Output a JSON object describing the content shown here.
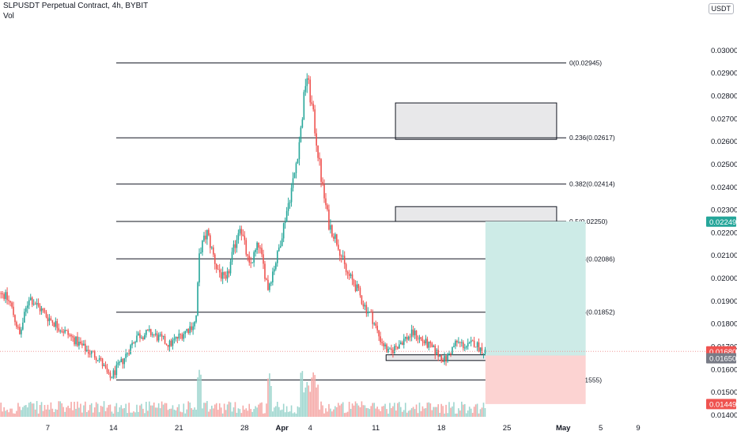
{
  "header": {
    "title": "SLPUSDT Perpetual Contract, 4h, BYBIT",
    "indicator": "Vol"
  },
  "currency_button": "USDT",
  "colors": {
    "up": "#26a69a",
    "down": "#ef5350",
    "vol_up": "#9fd6cf",
    "vol_down": "#f5a9a7",
    "profit_zone": "#cdebe7",
    "loss_zone": "#fcd3d2",
    "zone_box": "#e8e8ea",
    "grid_line": "#131722",
    "price_line": "#ef9a9a"
  },
  "chart_data": {
    "type": "candlestick",
    "symbol": "SLPUSDT",
    "timeframe": "4h",
    "exchange": "BYBIT",
    "y_range": [
      0.014,
      0.031
    ],
    "y_ticks": [
      "0.03000",
      "0.02900",
      "0.02800",
      "0.02700",
      "0.02600",
      "0.02500",
      "0.02400",
      "0.02300",
      "0.02200",
      "0.02100",
      "0.02000",
      "0.01900",
      "0.01800",
      "0.01700",
      "0.01600",
      "0.01500",
      "0.01400"
    ],
    "x_ticks": [
      {
        "label": "7",
        "day": 7
      },
      {
        "label": "14",
        "day": 14
      },
      {
        "label": "21",
        "day": 21
      },
      {
        "label": "28",
        "day": 28
      },
      {
        "label": "Apr",
        "day": 32,
        "bold": true
      },
      {
        "label": "4",
        "day": 35
      },
      {
        "label": "11",
        "day": 42
      },
      {
        "label": "18",
        "day": 49
      },
      {
        "label": "25",
        "day": 56
      },
      {
        "label": "May",
        "day": 62,
        "bold": true
      },
      {
        "label": "5",
        "day": 66
      },
      {
        "label": "9",
        "day": 70
      }
    ],
    "fib_levels": [
      {
        "label": "0(0.02945)",
        "value": 0.02945
      },
      {
        "label": "0.236(0.02617)",
        "value": 0.02617
      },
      {
        "label": "0.382(0.02414)",
        "value": 0.02414
      },
      {
        "label": "0.5(0.02250)",
        "value": 0.0225
      },
      {
        "label": "0.618(0.02086)",
        "value": 0.02086
      },
      {
        "label": "0.786(0.01852)",
        "value": 0.01852
      },
      {
        "label": "1(0.01555)",
        "value": 0.01555
      }
    ],
    "zones": [
      {
        "day_start": 44.1,
        "day_end": 61.3,
        "low": 0.0261,
        "high": 0.0277
      },
      {
        "day_start": 44.1,
        "day_end": 61.3,
        "low": 0.0225,
        "high": 0.02315
      },
      {
        "day_start": 43.1,
        "day_end": 61.3,
        "low": 0.0164,
        "high": 0.01665
      }
    ],
    "position": {
      "day_start": 53.7,
      "day_end": 64.4,
      "entry": 0.01662,
      "target": 0.0225,
      "stop": 0.01449
    },
    "price_tags": [
      {
        "value": 0.02249,
        "label": "0.02249",
        "color": "#26a69a"
      },
      {
        "value": 0.0168,
        "label": "0.01680",
        "color": "#ef5350"
      },
      {
        "value": 0.0165,
        "label": "0.01650",
        "color": "#787b86"
      },
      {
        "value": 0.01449,
        "label": "0.01449",
        "color": "#ef5350"
      }
    ],
    "current_price": 0.0168,
    "anchor_points": [
      {
        "day": 1,
        "price": 0.02
      },
      {
        "day": 3,
        "price": 0.0189
      },
      {
        "day": 4,
        "price": 0.0175
      },
      {
        "day": 5,
        "price": 0.0192
      },
      {
        "day": 7,
        "price": 0.0183
      },
      {
        "day": 9,
        "price": 0.0176
      },
      {
        "day": 11,
        "price": 0.0169
      },
      {
        "day": 12.5,
        "price": 0.0165
      },
      {
        "day": 13.6,
        "price": 0.0156
      },
      {
        "day": 15,
        "price": 0.0164
      },
      {
        "day": 16.5,
        "price": 0.0175
      },
      {
        "day": 18,
        "price": 0.0176
      },
      {
        "day": 20,
        "price": 0.0171
      },
      {
        "day": 22,
        "price": 0.0178
      },
      {
        "day": 22.8,
        "price": 0.0181
      },
      {
        "day": 23.2,
        "price": 0.0212
      },
      {
        "day": 24,
        "price": 0.022
      },
      {
        "day": 25,
        "price": 0.0205
      },
      {
        "day": 26,
        "price": 0.0198
      },
      {
        "day": 27.5,
        "price": 0.0224
      },
      {
        "day": 28.5,
        "price": 0.0205
      },
      {
        "day": 29.5,
        "price": 0.0215
      },
      {
        "day": 30.5,
        "price": 0.0196
      },
      {
        "day": 31.5,
        "price": 0.021
      },
      {
        "day": 32.3,
        "price": 0.0226
      },
      {
        "day": 33.3,
        "price": 0.0245
      },
      {
        "day": 34,
        "price": 0.0265
      },
      {
        "day": 34.6,
        "price": 0.029
      },
      {
        "day": 35.3,
        "price": 0.0272
      },
      {
        "day": 36.3,
        "price": 0.024
      },
      {
        "day": 37,
        "price": 0.0224
      },
      {
        "day": 38,
        "price": 0.0215
      },
      {
        "day": 38.8,
        "price": 0.0203
      },
      {
        "day": 39.8,
        "price": 0.0197
      },
      {
        "day": 40.8,
        "price": 0.0188
      },
      {
        "day": 41.6,
        "price": 0.0183
      },
      {
        "day": 42.4,
        "price": 0.0174
      },
      {
        "day": 43.4,
        "price": 0.0167
      },
      {
        "day": 44.6,
        "price": 0.0172
      },
      {
        "day": 46,
        "price": 0.0176
      },
      {
        "day": 47.5,
        "price": 0.0171
      },
      {
        "day": 48.6,
        "price": 0.0167
      },
      {
        "day": 49.4,
        "price": 0.0164
      },
      {
        "day": 50.6,
        "price": 0.0172
      },
      {
        "day": 51.8,
        "price": 0.017
      },
      {
        "day": 52.5,
        "price": 0.0172
      },
      {
        "day": 53.2,
        "price": 0.0169
      },
      {
        "day": 53.7,
        "price": 0.0168
      }
    ]
  }
}
